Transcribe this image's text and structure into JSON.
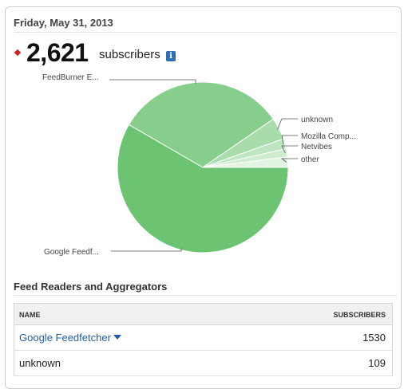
{
  "header": {
    "date": "Friday, May 31, 2013",
    "subscriber_count": "2,621",
    "subscribers_label": "subscribers",
    "info_icon": "i"
  },
  "chart_data": {
    "type": "pie",
    "slices": [
      {
        "label": "Google Feedf...",
        "value": 1530,
        "color": "#6cc473"
      },
      {
        "label": "FeedBurner E...",
        "value": 840,
        "color": "#87ce8c"
      },
      {
        "label": "unknown",
        "value": 109,
        "color": "#a8dcaa"
      },
      {
        "label": "Mozilla Comp...",
        "value": 50,
        "color": "#bde5bf"
      },
      {
        "label": "Netvibes",
        "value": 40,
        "color": "#cfeccf"
      },
      {
        "label": "other",
        "value": 52,
        "color": "#e2f4e2"
      }
    ]
  },
  "section": {
    "title": "Feed Readers and Aggregators"
  },
  "table": {
    "headers": {
      "name": "NAME",
      "subscribers": "SUBSCRIBERS"
    },
    "rows": [
      {
        "name": "Google Feedfetcher",
        "subscribers": "1530",
        "is_link": true
      },
      {
        "name": "unknown",
        "subscribers": "109",
        "is_link": false
      }
    ]
  },
  "icons": {
    "info": "info-icon",
    "dropdown": "chevron-down-icon",
    "bullet": "diamond-icon"
  },
  "colors": {
    "accent_red": "#cc2222",
    "link_blue": "#1f5fa6",
    "info_blue": "#2f6fb3"
  }
}
